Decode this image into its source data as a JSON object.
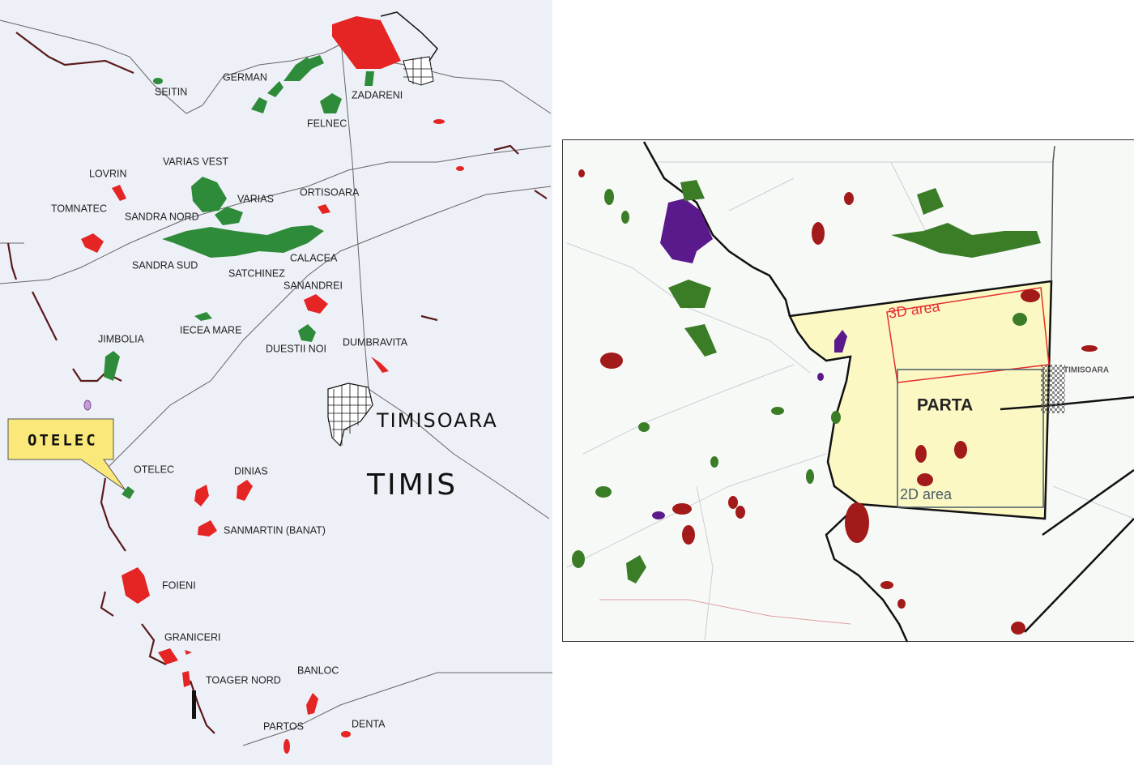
{
  "left_map": {
    "background": "#eef0f7",
    "county_label": "TIMIS",
    "city_label": "TIMISOARA",
    "callout": {
      "label": "OTELEC",
      "color": "#fbe87a"
    },
    "fields": {
      "seitin": "SEITIN",
      "german": "GERMAN",
      "zadareni": "ZADARENI",
      "felnec": "FELNEC",
      "varias_vest": "VARIAS VEST",
      "lovrin": "LOVRIN",
      "varias": "VARIAS",
      "ortisoara": "ORTISOARA",
      "tomnatec": "TOMNATEC",
      "sandra_nord": "SANDRA NORD",
      "calacea": "CALACEA",
      "sandra_sud": "SANDRA SUD",
      "satchinez": "SATCHINEZ",
      "sanandrei": "SANANDREI",
      "iecea_mare": "IECEA MARE",
      "jimbolia": "JIMBOLIA",
      "duestii_noi": "DUESTII NOI",
      "dumbravita": "DUMBRAVITA",
      "otelec": "OTELEC",
      "dinias": "DINIAS",
      "sanmartin": "SANMARTIN (BANAT)",
      "foieni": "FOIENI",
      "graniceri": "GRANICERI",
      "toager_nord": "TOAGER NORD",
      "banloc": "BANLOC",
      "partos": "PARTOS",
      "denta": "DENTA"
    },
    "colors": {
      "gas_field": "#2e8b3a",
      "oil_field": "#e52424",
      "border": "#5a1a1a"
    }
  },
  "right_map": {
    "block_label": "PARTA",
    "city_label": "TIMISOARA",
    "area_3d_label": "3D area",
    "area_2d_label": "2D area",
    "colors": {
      "block_fill": "#fbf8c4",
      "area_3d": "#e53030",
      "area_2d": "#4a5a6a"
    }
  }
}
